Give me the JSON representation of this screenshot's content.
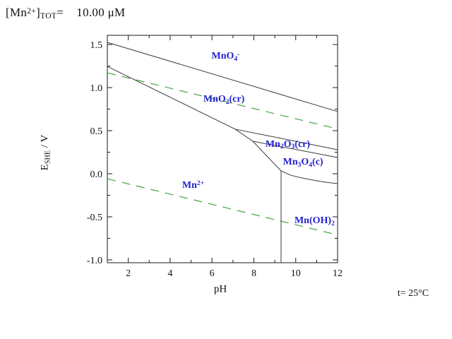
{
  "header": {
    "tot_label_segments": [
      {
        "t": "[Mn"
      },
      {
        "t": "2+",
        "s": "sup"
      },
      {
        "t": "]"
      },
      {
        "t": "TOT",
        "s": "sub"
      },
      {
        "t": "=    10.00 μM"
      }
    ]
  },
  "chart_data": {
    "type": "line",
    "subtype": "pourbaix_eh_ph_diagram",
    "title": "[Mn2+]TOT = 10.00 μM",
    "xlabel": "pH",
    "ylabel": "ESHE / V",
    "ylabel_segments": [
      {
        "t": "E"
      },
      {
        "t": "SHE",
        "s": "sub"
      },
      {
        "t": " / V"
      }
    ],
    "xlim": [
      1,
      12
    ],
    "ylim": [
      -1.033,
      1.607
    ],
    "grid": false,
    "legend": "none",
    "x_ticks": {
      "major": [
        {
          "v": 2,
          "label": "2"
        },
        {
          "v": 4,
          "label": "4"
        },
        {
          "v": 6,
          "label": "6"
        },
        {
          "v": 8,
          "label": "8"
        },
        {
          "v": 10,
          "label": "10"
        },
        {
          "v": 12,
          "label": "12"
        }
      ],
      "minor": [
        3,
        5,
        7,
        9,
        11
      ]
    },
    "y_ticks": {
      "major": [
        {
          "v": 1.5,
          "label": "1.5"
        },
        {
          "v": 1.0,
          "label": "1.0"
        },
        {
          "v": 0.5,
          "label": "0.5"
        },
        {
          "v": 0.0,
          "label": "0.0"
        },
        {
          "v": -0.5,
          "label": "-0.5"
        },
        {
          "v": -1.0,
          "label": "-1.0"
        }
      ],
      "minor": [
        1.25,
        0.75,
        0.25,
        -0.25,
        -0.75
      ]
    },
    "boundary_lines": [
      {
        "name": "MnO4- / MnO2 boundary",
        "points": [
          [
            1,
            1.525
          ],
          [
            12,
            0.722
          ]
        ]
      },
      {
        "name": "MnO2 / Mn2+ main boundary",
        "points": [
          [
            1,
            1.246
          ],
          [
            7.11,
            0.517
          ],
          [
            7.95,
            0.377
          ],
          [
            9.3,
            0.033
          ]
        ]
      },
      {
        "name": "MnO2 / Mn2O3 boundary",
        "points": [
          [
            7.11,
            0.517
          ],
          [
            12,
            0.279
          ]
        ]
      },
      {
        "name": "Mn2O3 / Mn3O4 boundary",
        "points": [
          [
            7.95,
            0.377
          ],
          [
            12,
            0.189
          ]
        ]
      },
      {
        "name": "Mn3O4 / Mn(OH)2 boundary",
        "points": [
          [
            9.3,
            0.033
          ],
          [
            9.75,
            -0.017
          ],
          [
            10.3,
            -0.049
          ],
          [
            11.0,
            -0.082
          ],
          [
            11.5,
            -0.1
          ],
          [
            12,
            -0.115
          ]
        ]
      },
      {
        "name": "Mn2+ / Mn(OH)2 vertical boundary",
        "points": [
          [
            9.3,
            0.033
          ],
          [
            9.3,
            -1.033
          ]
        ]
      }
    ],
    "water_stability_lines": [
      {
        "name": "O2/H2O limit",
        "points": [
          [
            1,
            1.171
          ],
          [
            12,
            0.52
          ]
        ]
      },
      {
        "name": "H2O/H2 limit",
        "points": [
          [
            1,
            -0.059
          ],
          [
            12,
            -0.71
          ]
        ]
      }
    ],
    "species_labels": [
      {
        "name": "MnO4-",
        "ph": 6.65,
        "e": 1.36,
        "segments": [
          {
            "t": "MnO"
          },
          {
            "t": "4",
            "s": "sub"
          },
          {
            "t": "-",
            "s": "sup"
          }
        ]
      },
      {
        "name": "MnO2(cr)",
        "ph": 6.57,
        "e": 0.86,
        "segments": [
          {
            "t": "MnO"
          },
          {
            "t": "2",
            "s": "sub"
          },
          {
            "t": "(cr)"
          }
        ]
      },
      {
        "name": "Mn2O3(cr)",
        "ph": 9.62,
        "e": 0.34,
        "segments": [
          {
            "t": "Mn"
          },
          {
            "t": "2",
            "s": "sub"
          },
          {
            "t": "O"
          },
          {
            "t": "3",
            "s": "sub"
          },
          {
            "t": "(cr)"
          }
        ]
      },
      {
        "name": "Mn3O4(c)",
        "ph": 10.35,
        "e": 0.13,
        "segments": [
          {
            "t": "Mn"
          },
          {
            "t": "3",
            "s": "sub"
          },
          {
            "t": "O"
          },
          {
            "t": "4",
            "s": "sub"
          },
          {
            "t": "(c)"
          }
        ]
      },
      {
        "name": "Mn2+",
        "ph": 5.1,
        "e": -0.14,
        "segments": [
          {
            "t": "Mn"
          },
          {
            "t": "2+",
            "s": "sup"
          }
        ]
      },
      {
        "name": "Mn(OH)2",
        "ph": 10.9,
        "e": -0.55,
        "segments": [
          {
            "t": "Mn(OH)"
          },
          {
            "t": "2",
            "s": "sub"
          }
        ]
      }
    ],
    "annotations": [
      {
        "text": "t= 25°C",
        "position": "bottom-right"
      }
    ],
    "colors": {
      "boundary": "#3a3a3a",
      "water": "#44a344",
      "species_label": "#2222cc",
      "axis": "#1a1a1a"
    }
  }
}
